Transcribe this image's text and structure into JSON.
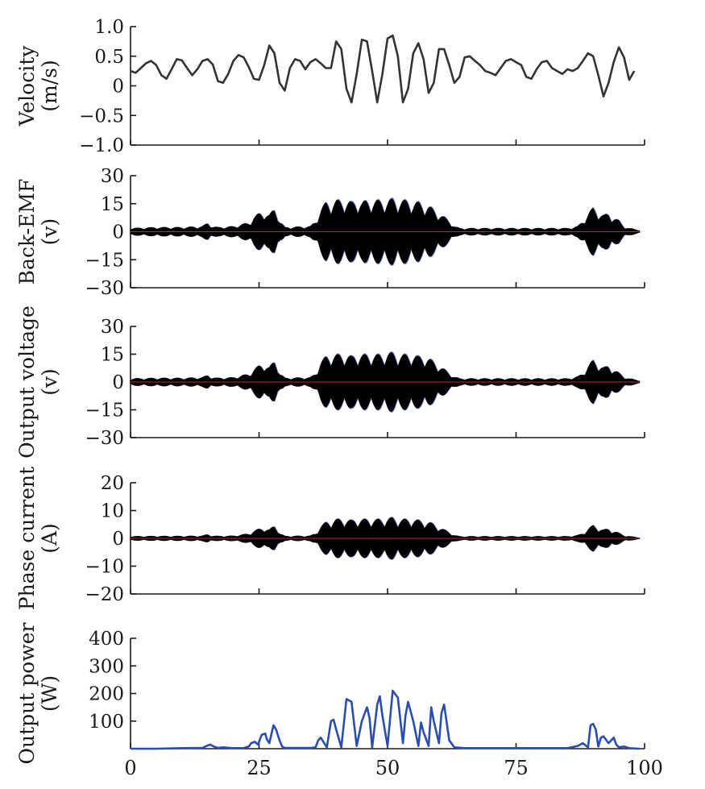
{
  "chart_data": [
    {
      "type": "line",
      "ylabel": [
        "Velocity",
        "(m/s)"
      ],
      "ylim": [
        -1.0,
        1.0
      ],
      "yticks": [
        -1.0,
        -0.5,
        0,
        0.5,
        1.0
      ],
      "ytick_labels": [
        "−1.0",
        "−0.5",
        "0",
        "0.5",
        "1.0"
      ],
      "xlim": [
        0,
        100
      ],
      "color": "#333333",
      "series": [
        {
          "name": "Velocity",
          "x": [
            0,
            1,
            2,
            3,
            4,
            5,
            6,
            7,
            8,
            9,
            10,
            11,
            12,
            13,
            14,
            15,
            16,
            17,
            18,
            19,
            20,
            21,
            22,
            23,
            24,
            25,
            26,
            27,
            28,
            29,
            30,
            31,
            32,
            33,
            34,
            35,
            36,
            37,
            38,
            39,
            40,
            41,
            42,
            43,
            44,
            45,
            46,
            47,
            48,
            49,
            50,
            51,
            52,
            53,
            54,
            55,
            56,
            57,
            58,
            59,
            60,
            61,
            62,
            63,
            64,
            65,
            66,
            67,
            68,
            69,
            70,
            71,
            72,
            73,
            74,
            75,
            76,
            77,
            78,
            79,
            80,
            81,
            82,
            83,
            84,
            85,
            86,
            87,
            88,
            89,
            90,
            91,
            92,
            93,
            94,
            95,
            96,
            97,
            98
          ],
          "values": [
            0.25,
            0.22,
            0.3,
            0.38,
            0.42,
            0.35,
            0.18,
            0.12,
            0.28,
            0.45,
            0.43,
            0.3,
            0.18,
            0.28,
            0.42,
            0.45,
            0.36,
            0.08,
            0.05,
            0.2,
            0.42,
            0.52,
            0.48,
            0.32,
            0.12,
            0.1,
            0.35,
            0.68,
            0.55,
            0.05,
            -0.08,
            0.3,
            0.45,
            0.42,
            0.28,
            0.4,
            0.45,
            0.38,
            0.3,
            0.3,
            0.75,
            0.62,
            -0.05,
            -0.28,
            0.2,
            0.78,
            0.75,
            0.25,
            -0.28,
            0.2,
            0.8,
            0.85,
            0.5,
            -0.28,
            -0.05,
            0.55,
            0.72,
            0.45,
            -0.12,
            0.05,
            0.62,
            0.62,
            0.35,
            0.05,
            0.15,
            0.48,
            0.5,
            0.42,
            0.35,
            0.25,
            0.22,
            0.18,
            0.3,
            0.42,
            0.45,
            0.4,
            0.35,
            0.15,
            0.12,
            0.28,
            0.4,
            0.42,
            0.3,
            0.25,
            0.2,
            0.28,
            0.25,
            0.3,
            0.42,
            0.55,
            0.5,
            0.18,
            -0.18,
            0.05,
            0.4,
            0.65,
            0.48,
            0.1,
            0.25
          ]
        }
      ]
    },
    {
      "type": "line",
      "ylabel": [
        "Back-EMF",
        "(v)"
      ],
      "ylim": [
        -30,
        30
      ],
      "yticks": [
        -30,
        -15,
        0,
        15,
        30
      ],
      "ytick_labels": [
        "−30",
        "−15",
        "0",
        "15",
        "30"
      ],
      "xlim": [
        0,
        100
      ],
      "color": "#000000",
      "envelope": {
        "x": [
          0,
          5,
          10,
          14,
          15,
          16,
          17,
          20,
          23,
          24,
          25,
          26,
          27,
          28,
          28.5,
          29,
          30,
          35,
          36,
          37,
          38,
          39,
          40,
          41,
          42,
          43,
          44,
          45,
          46,
          47,
          48,
          49,
          50,
          51,
          52,
          53,
          54,
          55,
          56,
          57,
          58,
          59,
          60,
          61,
          62,
          63,
          64,
          65,
          70,
          75,
          80,
          85,
          87,
          88,
          89,
          90,
          91,
          92,
          93,
          94,
          95,
          96,
          97,
          98,
          99
        ],
        "values": [
          2,
          2.5,
          2.5,
          3,
          5,
          3,
          2.5,
          3,
          5,
          8,
          10,
          11,
          9,
          13,
          11,
          6,
          2.5,
          3,
          6,
          12,
          16,
          16,
          17,
          17,
          17,
          16,
          17,
          16,
          17,
          17,
          17,
          17,
          17,
          18,
          17,
          17,
          17,
          16,
          16,
          15,
          14,
          12,
          10,
          8,
          6,
          3,
          2,
          2,
          2,
          2,
          2,
          2,
          3,
          6,
          10,
          13,
          11,
          9,
          10,
          8,
          6,
          3,
          2,
          1.5,
          1
        ]
      }
    },
    {
      "type": "line",
      "ylabel": [
        "Output voltage",
        "(v)"
      ],
      "ylim": [
        -30,
        30
      ],
      "yticks": [
        -30,
        -15,
        0,
        15,
        30
      ],
      "ytick_labels": [
        "−30",
        "−15",
        "0",
        "15",
        "30"
      ],
      "xlim": [
        0,
        100
      ],
      "color": "#000000",
      "envelope": {
        "x": [
          0,
          5,
          10,
          14,
          15,
          16,
          17,
          20,
          23,
          24,
          25,
          26,
          27,
          28,
          28.5,
          29,
          30,
          35,
          36,
          37,
          38,
          39,
          40,
          41,
          42,
          43,
          44,
          45,
          46,
          47,
          48,
          49,
          50,
          51,
          52,
          53,
          54,
          55,
          56,
          57,
          58,
          59,
          60,
          61,
          62,
          63,
          64,
          65,
          70,
          75,
          80,
          85,
          87,
          88,
          89,
          90,
          91,
          92,
          93,
          94,
          95,
          96,
          97,
          98,
          99
        ],
        "values": [
          2,
          2.3,
          2.3,
          2.6,
          4,
          2.6,
          2.3,
          2.6,
          4.5,
          7,
          9,
          10,
          8,
          12,
          10,
          5,
          2.3,
          2.6,
          5,
          11,
          14,
          15,
          15,
          15,
          15,
          14,
          15,
          15,
          15,
          15,
          15,
          15,
          16,
          16,
          15,
          15,
          15,
          15,
          14,
          14,
          13,
          11,
          9,
          7,
          5,
          3,
          2,
          2,
          2,
          2,
          2,
          2,
          3,
          5,
          9,
          12,
          10,
          8,
          9,
          7,
          5,
          3,
          2,
          1.5,
          1
        ]
      }
    },
    {
      "type": "line",
      "ylabel": [
        "Phase current",
        "(A)"
      ],
      "ylim": [
        -20,
        20
      ],
      "yticks": [
        -20,
        -10,
        0,
        10,
        20
      ],
      "ytick_labels": [
        "−20",
        "−10",
        "0",
        "10",
        "20"
      ],
      "xlim": [
        0,
        100
      ],
      "color": "#000000",
      "envelope": {
        "x": [
          0,
          5,
          10,
          14,
          15,
          16,
          17,
          20,
          23,
          24,
          25,
          26,
          27,
          28,
          28.5,
          29,
          30,
          35,
          36,
          37,
          38,
          39,
          40,
          41,
          42,
          43,
          44,
          45,
          46,
          47,
          48,
          49,
          50,
          51,
          52,
          53,
          54,
          55,
          56,
          57,
          58,
          59,
          60,
          61,
          62,
          63,
          64,
          65,
          70,
          75,
          80,
          85,
          87,
          88,
          89,
          90,
          91,
          92,
          93,
          94,
          95,
          96,
          97,
          98,
          99
        ],
        "values": [
          0.8,
          0.9,
          0.9,
          1,
          1.6,
          1,
          0.9,
          1,
          1.8,
          2.8,
          3.5,
          4,
          3.2,
          4.8,
          4,
          2,
          0.9,
          1,
          2,
          4.4,
          6,
          6.5,
          7,
          7,
          7,
          6.6,
          7,
          7,
          7,
          7,
          7,
          7,
          7.4,
          7.6,
          7,
          7,
          7,
          7,
          6.6,
          6.4,
          6,
          5.2,
          4.2,
          3.2,
          2.4,
          1.2,
          0.8,
          0.8,
          0.8,
          0.8,
          0.8,
          0.8,
          1.2,
          2,
          3.6,
          4.8,
          4,
          3.2,
          3.6,
          2.8,
          2,
          1.2,
          0.8,
          0.6,
          0.4
        ]
      }
    },
    {
      "type": "line",
      "ylabel": [
        "Output power",
        "(W)"
      ],
      "ylim": [
        0,
        400
      ],
      "yticks": [
        100,
        200,
        300,
        400
      ],
      "ytick_labels": [
        "100",
        "200",
        "300",
        "400"
      ],
      "xlim": [
        0,
        100
      ],
      "xticks": [
        0,
        25,
        50,
        75,
        100
      ],
      "xtick_labels": [
        "0",
        "25",
        "50",
        "75",
        "100"
      ],
      "color": "#2a4db0",
      "series": [
        {
          "name": "Output power",
          "x": [
            0,
            5,
            10,
            14,
            14.8,
            15.5,
            16.2,
            17,
            18,
            20,
            22,
            23,
            23.5,
            24.2,
            24.8,
            25.5,
            26.2,
            26.5,
            27,
            27.8,
            28.3,
            29,
            29.5,
            30,
            35,
            36,
            36.5,
            37,
            38.2,
            39,
            39.5,
            40,
            41,
            42,
            43,
            44,
            45,
            46,
            46.5,
            47,
            48,
            48.5,
            49,
            50,
            51,
            52,
            53,
            53.5,
            54,
            55,
            56,
            56.5,
            57,
            58,
            58.5,
            59,
            60,
            60.5,
            61,
            62,
            63,
            65,
            70,
            75,
            80,
            85,
            87,
            88,
            89,
            89.5,
            90,
            90.5,
            91,
            91.5,
            92,
            93,
            94,
            94.5,
            95,
            96,
            97,
            98,
            99
          ],
          "values": [
            0,
            0,
            2,
            3,
            10,
            15,
            8,
            3,
            5,
            2,
            2,
            8,
            20,
            25,
            15,
            50,
            55,
            35,
            20,
            85,
            70,
            30,
            8,
            3,
            3,
            5,
            30,
            40,
            5,
            100,
            105,
            70,
            5,
            180,
            170,
            10,
            100,
            150,
            110,
            5,
            160,
            190,
            120,
            10,
            210,
            185,
            20,
            120,
            170,
            100,
            10,
            95,
            60,
            10,
            150,
            100,
            20,
            130,
            160,
            30,
            5,
            2,
            2,
            2,
            2,
            2,
            10,
            20,
            5,
            85,
            90,
            70,
            8,
            40,
            45,
            20,
            40,
            15,
            5,
            8,
            2,
            1,
            0
          ]
        }
      ]
    }
  ]
}
